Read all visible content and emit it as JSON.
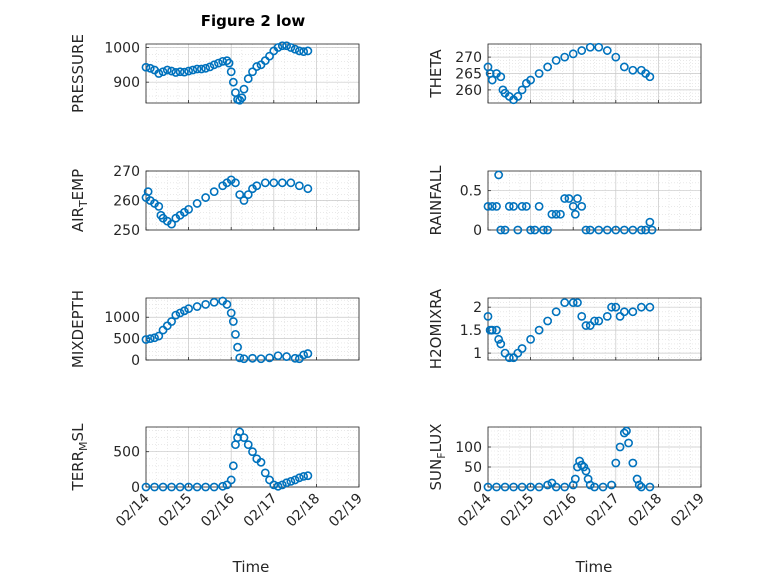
{
  "figure": {
    "title": "Figure 2 low",
    "xlabel": "Time",
    "x_tick_labels": [
      "02/14",
      "02/15",
      "02/16",
      "02/17",
      "02/18",
      "02/19"
    ]
  },
  "style": {
    "marker_color": "#0072BD",
    "axis_color": "#262626",
    "grid_color": "#dcdcdc",
    "background": "#ffffff"
  },
  "chart_data": [
    {
      "type": "scatter",
      "id": "pressure",
      "ylabel": "PRESSURE",
      "yticks": [
        900,
        1000
      ],
      "ylim": [
        840,
        1010
      ],
      "xlim": [
        14,
        19
      ],
      "grid": true,
      "points": [
        [
          14.0,
          943
        ],
        [
          14.1,
          940
        ],
        [
          14.2,
          935
        ],
        [
          14.3,
          925
        ],
        [
          14.4,
          930
        ],
        [
          14.5,
          935
        ],
        [
          14.6,
          932
        ],
        [
          14.7,
          928
        ],
        [
          14.8,
          930
        ],
        [
          14.9,
          929
        ],
        [
          15.0,
          932
        ],
        [
          15.1,
          935
        ],
        [
          15.2,
          938
        ],
        [
          15.3,
          938
        ],
        [
          15.4,
          940
        ],
        [
          15.5,
          944
        ],
        [
          15.6,
          950
        ],
        [
          15.7,
          955
        ],
        [
          15.8,
          960
        ],
        [
          15.9,
          962
        ],
        [
          15.95,
          955
        ],
        [
          16.0,
          930
        ],
        [
          16.05,
          900
        ],
        [
          16.1,
          870
        ],
        [
          16.15,
          850
        ],
        [
          16.2,
          848
        ],
        [
          16.25,
          855
        ],
        [
          16.3,
          880
        ],
        [
          16.4,
          910
        ],
        [
          16.5,
          930
        ],
        [
          16.6,
          945
        ],
        [
          16.7,
          950
        ],
        [
          16.8,
          962
        ],
        [
          16.9,
          975
        ],
        [
          17.0,
          990
        ],
        [
          17.1,
          1000
        ],
        [
          17.2,
          1005
        ],
        [
          17.3,
          1005
        ],
        [
          17.4,
          1000
        ],
        [
          17.5,
          995
        ],
        [
          17.6,
          990
        ],
        [
          17.7,
          988
        ],
        [
          17.8,
          990
        ]
      ]
    },
    {
      "type": "scatter",
      "id": "theta",
      "ylabel": "THETA",
      "yticks": [
        260,
        265,
        270
      ],
      "ylim": [
        256,
        274
      ],
      "xlim": [
        14,
        19
      ],
      "grid": true,
      "points": [
        [
          14.0,
          267
        ],
        [
          14.05,
          265
        ],
        [
          14.1,
          263
        ],
        [
          14.2,
          265
        ],
        [
          14.3,
          264
        ],
        [
          14.35,
          260
        ],
        [
          14.4,
          259
        ],
        [
          14.5,
          258
        ],
        [
          14.6,
          257
        ],
        [
          14.7,
          258
        ],
        [
          14.8,
          260
        ],
        [
          14.9,
          262
        ],
        [
          15.0,
          263
        ],
        [
          15.2,
          265
        ],
        [
          15.4,
          267
        ],
        [
          15.6,
          269
        ],
        [
          15.8,
          270
        ],
        [
          16.0,
          271
        ],
        [
          16.2,
          272
        ],
        [
          16.4,
          273
        ],
        [
          16.6,
          273
        ],
        [
          16.8,
          272
        ],
        [
          17.0,
          270
        ],
        [
          17.2,
          267
        ],
        [
          17.4,
          266
        ],
        [
          17.6,
          266
        ],
        [
          17.7,
          265
        ],
        [
          17.8,
          264
        ]
      ]
    },
    {
      "type": "scatter",
      "id": "air_temp",
      "ylabel": "AIR_TEMP",
      "ylabel_main": "AIR",
      "ylabel_sub": "T",
      "ylabel_tail": "EMP",
      "yticks": [
        250,
        260,
        270
      ],
      "ylim": [
        250,
        270
      ],
      "xlim": [
        14,
        19
      ],
      "grid": true,
      "points": [
        [
          14.0,
          261
        ],
        [
          14.05,
          263
        ],
        [
          14.1,
          260
        ],
        [
          14.2,
          259
        ],
        [
          14.3,
          258
        ],
        [
          14.35,
          255
        ],
        [
          14.4,
          254
        ],
        [
          14.5,
          253
        ],
        [
          14.6,
          252
        ],
        [
          14.7,
          254
        ],
        [
          14.8,
          255
        ],
        [
          14.9,
          256
        ],
        [
          15.0,
          257
        ],
        [
          15.2,
          259
        ],
        [
          15.4,
          261
        ],
        [
          15.6,
          263
        ],
        [
          15.8,
          265
        ],
        [
          15.9,
          266
        ],
        [
          16.0,
          267
        ],
        [
          16.1,
          266
        ],
        [
          16.2,
          262
        ],
        [
          16.3,
          260
        ],
        [
          16.4,
          262
        ],
        [
          16.5,
          264
        ],
        [
          16.6,
          265
        ],
        [
          16.8,
          266
        ],
        [
          17.0,
          266
        ],
        [
          17.2,
          266
        ],
        [
          17.4,
          266
        ],
        [
          17.6,
          265
        ],
        [
          17.8,
          264
        ]
      ]
    },
    {
      "type": "scatter",
      "id": "rainfall",
      "ylabel": "RAINFALL",
      "yticks": [
        0,
        0.5
      ],
      "ylim": [
        0,
        0.75
      ],
      "xlim": [
        14,
        19
      ],
      "grid": true,
      "points": [
        [
          14.0,
          0.3
        ],
        [
          14.1,
          0.3
        ],
        [
          14.2,
          0.3
        ],
        [
          14.25,
          0.7
        ],
        [
          14.3,
          0.0
        ],
        [
          14.4,
          0.0
        ],
        [
          14.5,
          0.3
        ],
        [
          14.6,
          0.3
        ],
        [
          14.7,
          0.0
        ],
        [
          14.8,
          0.3
        ],
        [
          14.9,
          0.3
        ],
        [
          15.0,
          0.0
        ],
        [
          15.1,
          0.0
        ],
        [
          15.2,
          0.3
        ],
        [
          15.3,
          0.0
        ],
        [
          15.4,
          0.0
        ],
        [
          15.5,
          0.2
        ],
        [
          15.6,
          0.2
        ],
        [
          15.7,
          0.2
        ],
        [
          15.8,
          0.4
        ],
        [
          15.9,
          0.4
        ],
        [
          16.0,
          0.3
        ],
        [
          16.05,
          0.2
        ],
        [
          16.1,
          0.4
        ],
        [
          16.2,
          0.3
        ],
        [
          16.3,
          0.0
        ],
        [
          16.4,
          0.0
        ],
        [
          16.6,
          0.0
        ],
        [
          16.8,
          0.0
        ],
        [
          17.0,
          0.0
        ],
        [
          17.2,
          0.0
        ],
        [
          17.4,
          0.0
        ],
        [
          17.6,
          0.0
        ],
        [
          17.7,
          0.0
        ],
        [
          17.8,
          0.1
        ],
        [
          17.85,
          0.0
        ]
      ]
    },
    {
      "type": "scatter",
      "id": "mixdepth",
      "ylabel": "MIXDEPTH",
      "yticks": [
        0,
        500,
        1000
      ],
      "ylim": [
        0,
        1450
      ],
      "xlim": [
        14,
        19
      ],
      "grid": true,
      "points": [
        [
          14.0,
          480
        ],
        [
          14.1,
          500
        ],
        [
          14.2,
          520
        ],
        [
          14.3,
          560
        ],
        [
          14.4,
          700
        ],
        [
          14.5,
          800
        ],
        [
          14.6,
          900
        ],
        [
          14.7,
          1050
        ],
        [
          14.8,
          1100
        ],
        [
          14.9,
          1150
        ],
        [
          15.0,
          1200
        ],
        [
          15.2,
          1250
        ],
        [
          15.4,
          1300
        ],
        [
          15.6,
          1350
        ],
        [
          15.8,
          1380
        ],
        [
          15.9,
          1300
        ],
        [
          16.0,
          1100
        ],
        [
          16.05,
          900
        ],
        [
          16.1,
          600
        ],
        [
          16.15,
          300
        ],
        [
          16.2,
          50
        ],
        [
          16.3,
          30
        ],
        [
          16.5,
          40
        ],
        [
          16.7,
          30
        ],
        [
          16.9,
          50
        ],
        [
          17.1,
          100
        ],
        [
          17.3,
          80
        ],
        [
          17.5,
          40
        ],
        [
          17.6,
          30
        ],
        [
          17.7,
          120
        ],
        [
          17.8,
          150
        ]
      ]
    },
    {
      "type": "scatter",
      "id": "h2omixra",
      "ylabel": "H2OMIXRA",
      "yticks": [
        1,
        1.5,
        2
      ],
      "ylim": [
        0.85,
        2.2
      ],
      "xlim": [
        14,
        19
      ],
      "grid": true,
      "points": [
        [
          14.0,
          1.8
        ],
        [
          14.05,
          1.5
        ],
        [
          14.1,
          1.5
        ],
        [
          14.2,
          1.5
        ],
        [
          14.25,
          1.3
        ],
        [
          14.3,
          1.2
        ],
        [
          14.4,
          1.0
        ],
        [
          14.5,
          0.9
        ],
        [
          14.6,
          0.9
        ],
        [
          14.7,
          1.0
        ],
        [
          14.8,
          1.1
        ],
        [
          15.0,
          1.3
        ],
        [
          15.2,
          1.5
        ],
        [
          15.4,
          1.7
        ],
        [
          15.6,
          1.9
        ],
        [
          15.8,
          2.1
        ],
        [
          16.0,
          2.1
        ],
        [
          16.1,
          2.1
        ],
        [
          16.2,
          1.8
        ],
        [
          16.3,
          1.6
        ],
        [
          16.4,
          1.6
        ],
        [
          16.5,
          1.7
        ],
        [
          16.6,
          1.7
        ],
        [
          16.8,
          1.8
        ],
        [
          16.9,
          2.0
        ],
        [
          17.0,
          2.0
        ],
        [
          17.1,
          1.8
        ],
        [
          17.2,
          1.9
        ],
        [
          17.4,
          1.9
        ],
        [
          17.6,
          2.0
        ],
        [
          17.8,
          2.0
        ]
      ]
    },
    {
      "type": "scatter",
      "id": "terr_msl",
      "ylabel": "TERR_MSL",
      "ylabel_main": "TERR",
      "ylabel_sub": "M",
      "ylabel_tail": "SL",
      "yticks": [
        0,
        500
      ],
      "ylim": [
        0,
        850
      ],
      "xlim": [
        14,
        19
      ],
      "grid": true,
      "points": [
        [
          14.0,
          0
        ],
        [
          14.2,
          0
        ],
        [
          14.4,
          0
        ],
        [
          14.6,
          0
        ],
        [
          14.8,
          0
        ],
        [
          15.0,
          0
        ],
        [
          15.2,
          0
        ],
        [
          15.4,
          0
        ],
        [
          15.6,
          0
        ],
        [
          15.8,
          10
        ],
        [
          15.9,
          30
        ],
        [
          16.0,
          100
        ],
        [
          16.05,
          300
        ],
        [
          16.1,
          600
        ],
        [
          16.15,
          700
        ],
        [
          16.2,
          780
        ],
        [
          16.3,
          700
        ],
        [
          16.4,
          600
        ],
        [
          16.5,
          500
        ],
        [
          16.6,
          400
        ],
        [
          16.7,
          350
        ],
        [
          16.8,
          200
        ],
        [
          16.9,
          100
        ],
        [
          17.0,
          30
        ],
        [
          17.1,
          10
        ],
        [
          17.2,
          30
        ],
        [
          17.3,
          60
        ],
        [
          17.4,
          80
        ],
        [
          17.5,
          100
        ],
        [
          17.6,
          130
        ],
        [
          17.7,
          150
        ],
        [
          17.8,
          160
        ]
      ]
    },
    {
      "type": "scatter",
      "id": "sun_flux",
      "ylabel": "SUN_FLUX",
      "ylabel_main": "SUN",
      "ylabel_sub": "F",
      "ylabel_tail": "LUX",
      "yticks": [
        0,
        50,
        100
      ],
      "ylim": [
        0,
        150
      ],
      "xlim": [
        14,
        19
      ],
      "grid": true,
      "points": [
        [
          14.0,
          0
        ],
        [
          14.2,
          0
        ],
        [
          14.4,
          0
        ],
        [
          14.6,
          0
        ],
        [
          14.8,
          0
        ],
        [
          15.0,
          0
        ],
        [
          15.2,
          0
        ],
        [
          15.4,
          5
        ],
        [
          15.5,
          10
        ],
        [
          15.6,
          0
        ],
        [
          15.8,
          0
        ],
        [
          16.0,
          5
        ],
        [
          16.05,
          20
        ],
        [
          16.1,
          50
        ],
        [
          16.15,
          65
        ],
        [
          16.2,
          55
        ],
        [
          16.25,
          50
        ],
        [
          16.3,
          40
        ],
        [
          16.35,
          20
        ],
        [
          16.4,
          5
        ],
        [
          16.5,
          0
        ],
        [
          16.7,
          0
        ],
        [
          16.9,
          5
        ],
        [
          17.0,
          60
        ],
        [
          17.1,
          100
        ],
        [
          17.2,
          135
        ],
        [
          17.25,
          140
        ],
        [
          17.3,
          110
        ],
        [
          17.4,
          60
        ],
        [
          17.5,
          20
        ],
        [
          17.55,
          5
        ],
        [
          17.6,
          0
        ],
        [
          17.8,
          0
        ]
      ]
    }
  ]
}
